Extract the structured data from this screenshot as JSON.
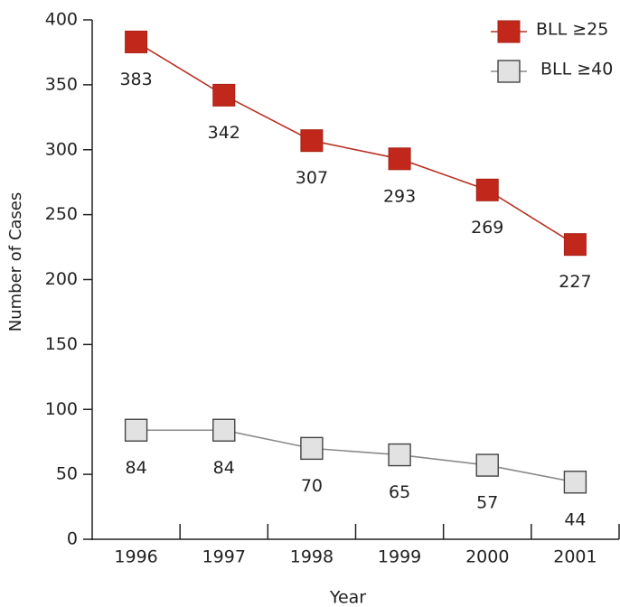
{
  "chart_data": {
    "type": "line",
    "x_label": "Year",
    "y_label": "Number of Cases",
    "categories": [
      "1996",
      "1997",
      "1998",
      "1999",
      "2000",
      "2001"
    ],
    "series": [
      {
        "name": "BLL ≥25",
        "color": "#c1281b",
        "line_color": "#b83226",
        "values": [
          383,
          342,
          307,
          293,
          269,
          227
        ]
      },
      {
        "name": "BLL ≥40",
        "color": "#e2e2e2",
        "line_color": "#8a8a8a",
        "values": [
          84,
          84,
          70,
          65,
          57,
          44
        ]
      }
    ],
    "ylim": [
      0,
      400
    ],
    "yticks": [
      0,
      50,
      100,
      150,
      200,
      250,
      300,
      350,
      400
    ],
    "grid": false,
    "legend": "top-right",
    "marker": "square",
    "data_labels": true
  }
}
